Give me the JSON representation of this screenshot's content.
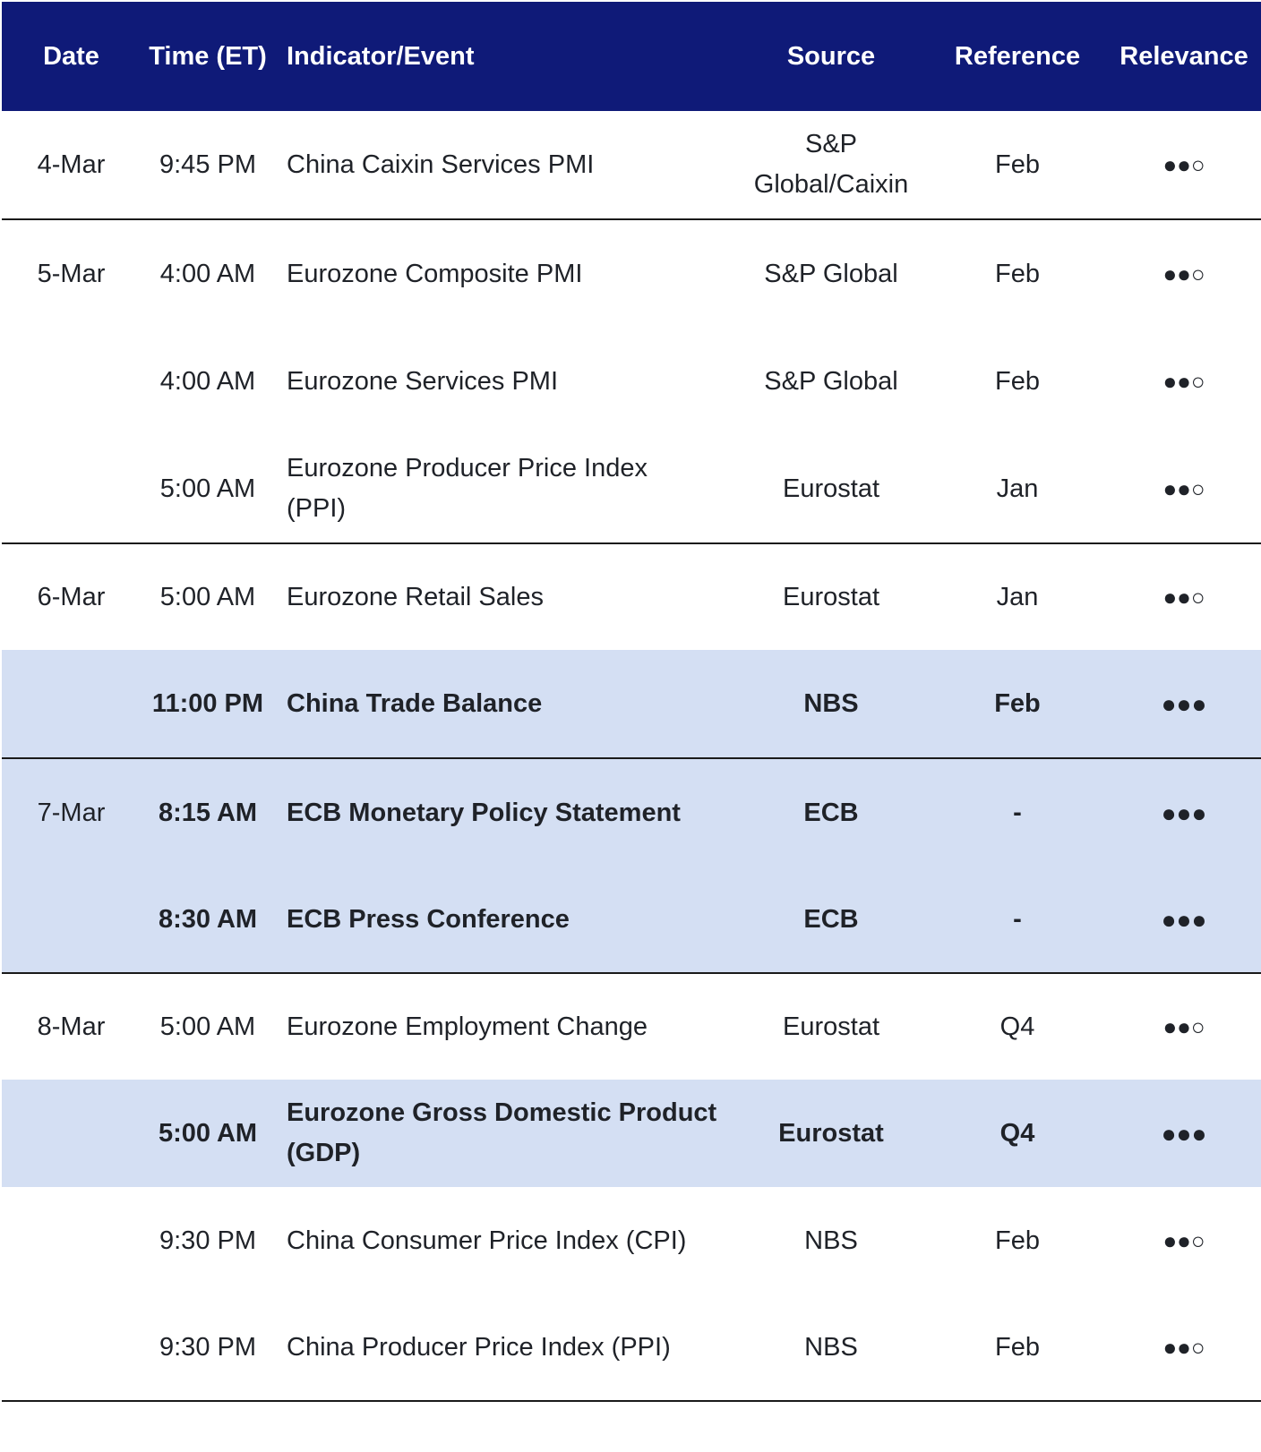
{
  "header": {
    "date": "Date",
    "time": "Time (ET)",
    "event": "Indicator/Event",
    "source": "Source",
    "reference": "Reference",
    "relevance": "Relevance"
  },
  "colors": {
    "header_bg": "#0f1a78",
    "highlight_bg": "#d4dff3"
  },
  "rows": [
    {
      "date": "4-Mar",
      "time": "9:45 PM",
      "event": "China Caixin Services PMI",
      "source": "S&P Global/Caixin",
      "reference": "Feb",
      "relevance": "●●○",
      "highlight": false
    },
    {
      "date": "5-Mar",
      "time": "4:00 AM",
      "event": "Eurozone Composite PMI",
      "source": "S&P Global",
      "reference": "Feb",
      "relevance": "●●○",
      "highlight": false
    },
    {
      "date": "",
      "time": "4:00 AM",
      "event": "Eurozone Services PMI",
      "source": "S&P Global",
      "reference": "Feb",
      "relevance": "●●○",
      "highlight": false
    },
    {
      "date": "",
      "time": "5:00 AM",
      "event": "Eurozone Producer Price Index (PPI)",
      "source": "Eurostat",
      "reference": "Jan",
      "relevance": "●●○",
      "highlight": false
    },
    {
      "date": "6-Mar",
      "time": "5:00 AM",
      "event": "Eurozone Retail Sales",
      "source": "Eurostat",
      "reference": "Jan",
      "relevance": "●●○",
      "highlight": false
    },
    {
      "date": "",
      "time": "11:00 PM",
      "event": "China Trade Balance",
      "source": "NBS",
      "reference": "Feb",
      "relevance": "●●●",
      "highlight": true
    },
    {
      "date": "7-Mar",
      "time": "8:15 AM",
      "event": "ECB Monetary Policy Statement",
      "source": "ECB",
      "reference": "-",
      "relevance": "●●●",
      "highlight": true
    },
    {
      "date": "",
      "time": "8:30 AM",
      "event": "ECB Press Conference",
      "source": "ECB",
      "reference": "-",
      "relevance": "●●●",
      "highlight": true
    },
    {
      "date": "8-Mar",
      "time": "5:00 AM",
      "event": "Eurozone Employment Change",
      "source": "Eurostat",
      "reference": "Q4",
      "relevance": "●●○",
      "highlight": false
    },
    {
      "date": "",
      "time": "5:00 AM",
      "event": "Eurozone Gross Domestic Product (GDP)",
      "source": "Eurostat",
      "reference": "Q4",
      "relevance": "●●●",
      "highlight": true
    },
    {
      "date": "",
      "time": "9:30 PM",
      "event": "China Consumer Price Index (CPI)",
      "source": "NBS",
      "reference": "Feb",
      "relevance": "●●○",
      "highlight": false
    },
    {
      "date": "",
      "time": "9:30 PM",
      "event": "China Producer Price Index (PPI)",
      "source": "NBS",
      "reference": "Feb",
      "relevance": "●●○",
      "highlight": false
    }
  ]
}
